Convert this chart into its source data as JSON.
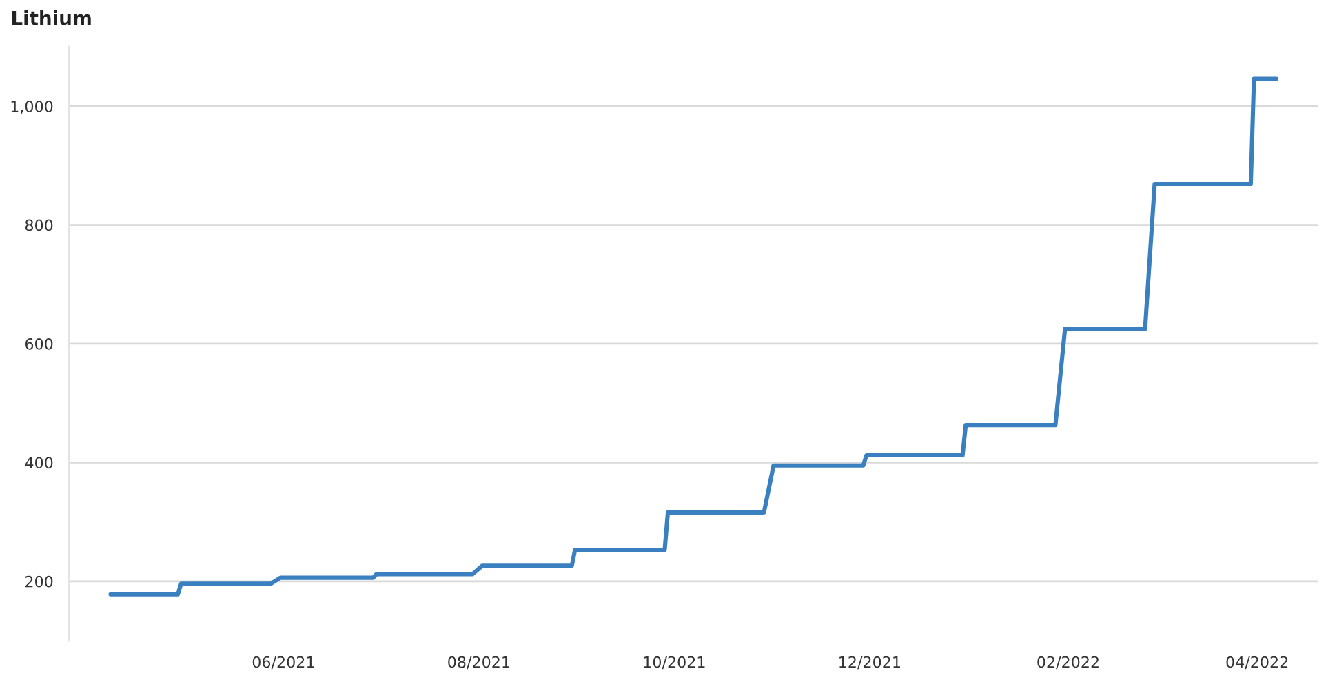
{
  "chart_data": {
    "type": "line",
    "title": "Lithium",
    "x": [
      "2021-04-08",
      "2021-04-29",
      "2021-04-30",
      "2021-05-28",
      "2021-05-31",
      "2021-06-29",
      "2021-06-30",
      "2021-07-30",
      "2021-08-02",
      "2021-08-30",
      "2021-08-31",
      "2021-09-28",
      "2021-09-29",
      "2021-10-29",
      "2021-11-01",
      "2021-11-29",
      "2021-11-30",
      "2021-12-30",
      "2021-12-31",
      "2022-01-28",
      "2022-01-31",
      "2022-02-25",
      "2022-02-28",
      "2022-03-30",
      "2022-03-31",
      "2022-04-07"
    ],
    "series": [
      {
        "color": "#3a7fbf",
        "values": [
          178,
          178,
          196,
          196,
          206,
          206,
          212,
          212,
          226,
          226,
          253,
          253,
          316,
          316,
          395,
          395,
          412,
          412,
          463,
          463,
          625,
          625,
          869,
          869,
          1046,
          1046
        ]
      }
    ],
    "xlim": [
      "2021-03-26",
      "2022-04-20"
    ],
    "xticks": [
      {
        "value": "2021-06-01",
        "label": "06/2021"
      },
      {
        "value": "2021-08-01",
        "label": "08/2021"
      },
      {
        "value": "2021-10-01",
        "label": "10/2021"
      },
      {
        "value": "2021-12-01",
        "label": "12/2021"
      },
      {
        "value": "2022-02-01",
        "label": "02/2022"
      },
      {
        "value": "2022-04-01",
        "label": "04/2022"
      }
    ],
    "ylim": [
      100,
      1100
    ],
    "yticks": [
      200,
      400,
      600,
      800,
      {
        "value": 1000,
        "label": "1,000"
      }
    ],
    "grid": "y",
    "line_style": "solid"
  }
}
